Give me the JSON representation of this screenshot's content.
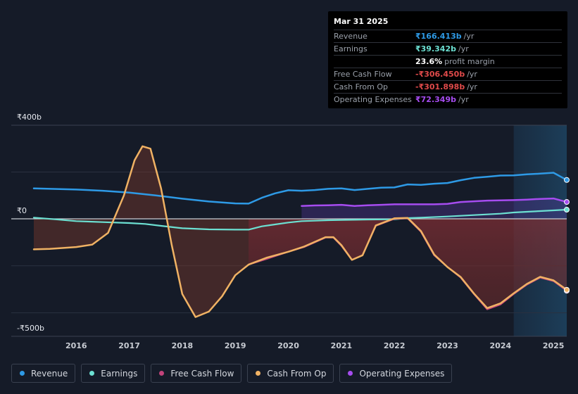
{
  "colors": {
    "revenue": "#2e9ae6",
    "earnings": "#6ce0d2",
    "fcf": "#c2437a",
    "cfo": "#f0b264",
    "opex": "#a64cf0",
    "grid": "#2a3140",
    "zero": "#c8ccd3",
    "axis_text": "#e6e9ef"
  },
  "tooltip": {
    "date": "Mar 31 2025",
    "rows": [
      {
        "label": "Revenue",
        "value": "₹166.413b",
        "unit": "/yr",
        "color": "#2e9ae6"
      },
      {
        "label": "Earnings",
        "value": "₹39.342b",
        "unit": "/yr",
        "color": "#6ce0d2"
      },
      {
        "label": "",
        "value": "23.6%",
        "unit": "profit margin",
        "color": "#ffffff"
      },
      {
        "label": "Free Cash Flow",
        "value": "-₹306.450b",
        "unit": "/yr",
        "color": "#e04a4a"
      },
      {
        "label": "Cash From Op",
        "value": "-₹301.898b",
        "unit": "/yr",
        "color": "#e04a4a"
      },
      {
        "label": "Operating Expenses",
        "value": "₹72.349b",
        "unit": "/yr",
        "color": "#a64cf0"
      }
    ]
  },
  "legend": [
    {
      "label": "Revenue",
      "color": "#2e9ae6"
    },
    {
      "label": "Earnings",
      "color": "#6ce0d2"
    },
    {
      "label": "Free Cash Flow",
      "color": "#c2437a"
    },
    {
      "label": "Cash From Op",
      "color": "#f0b264"
    },
    {
      "label": "Operating Expenses",
      "color": "#a64cf0"
    }
  ],
  "chart_data": {
    "type": "line",
    "title": "",
    "xlabel": "",
    "ylabel": "",
    "y_axis_labels": [
      "₹400b",
      "₹0",
      "-₹500b"
    ],
    "xlim": [
      2015.2,
      2025.25
    ],
    "ylim": [
      -500,
      400
    ],
    "x_ticks": [
      2016,
      2017,
      2018,
      2019,
      2020,
      2021,
      2022,
      2023,
      2024,
      2025
    ],
    "highlight_from": 2024.25,
    "series": [
      {
        "name": "Revenue",
        "key": "revenue",
        "fill": false,
        "x": [
          2015.2,
          2016.0,
          2016.5,
          2017.0,
          2017.5,
          2018.0,
          2018.5,
          2019.0,
          2019.25,
          2019.5,
          2019.75,
          2020.0,
          2020.25,
          2020.5,
          2020.75,
          2021.0,
          2021.25,
          2021.5,
          2021.75,
          2022.0,
          2022.25,
          2022.5,
          2022.75,
          2023.0,
          2023.25,
          2023.5,
          2023.75,
          2024.0,
          2024.25,
          2024.5,
          2024.75,
          2025.0,
          2025.25
        ],
        "values": [
          130,
          125,
          120,
          112,
          100,
          86,
          74,
          66,
          65,
          90,
          109,
          122,
          120,
          123,
          128,
          130,
          123,
          128,
          133,
          134,
          147,
          145,
          150,
          153,
          165,
          175,
          180,
          185,
          186,
          190,
          193,
          197,
          166
        ]
      },
      {
        "name": "Earnings",
        "key": "earnings",
        "fill": false,
        "x": [
          2015.2,
          2015.6,
          2016.0,
          2016.5,
          2017.0,
          2017.3,
          2017.6,
          2018.0,
          2018.5,
          2019.0,
          2019.25,
          2019.5,
          2019.75,
          2020.0,
          2020.25,
          2020.5,
          2020.75,
          2021.0,
          2021.5,
          2022.0,
          2022.25,
          2022.5,
          2023.0,
          2023.5,
          2024.0,
          2024.25,
          2024.5,
          2024.75,
          2025.0,
          2025.25
        ],
        "values": [
          5,
          -2,
          -10,
          -14,
          -18,
          -22,
          -30,
          -40,
          -45,
          -46,
          -46,
          -32,
          -24,
          -16,
          -10,
          -8,
          -6,
          -5,
          -3,
          -2,
          3,
          5,
          10,
          16,
          22,
          27,
          30,
          33,
          36,
          39
        ]
      },
      {
        "name": "Free Cash Flow",
        "key": "fcf",
        "fill": true,
        "x": [
          2019.25,
          2019.6,
          2020.0,
          2020.3,
          2020.7,
          2020.85,
          2021.0,
          2021.2,
          2021.4,
          2021.65,
          2022.0,
          2022.25,
          2022.5,
          2022.75,
          2023.0,
          2023.25,
          2023.5,
          2023.75,
          2024.0,
          2024.25,
          2024.5,
          2024.75,
          2025.0,
          2025.25
        ],
        "values": [
          -195,
          -170,
          -140,
          -120,
          -80,
          -80,
          -115,
          -175,
          -155,
          -30,
          0,
          2,
          -55,
          -155,
          -205,
          -250,
          -320,
          -385,
          -365,
          -320,
          -280,
          -250,
          -265,
          -306
        ]
      },
      {
        "name": "Cash From Op",
        "key": "cfo",
        "fill": true,
        "x": [
          2015.2,
          2015.5,
          2016.0,
          2016.3,
          2016.6,
          2016.9,
          2017.1,
          2017.25,
          2017.4,
          2017.6,
          2017.8,
          2018.0,
          2018.25,
          2018.5,
          2018.75,
          2019.0,
          2019.25,
          2019.6,
          2020.0,
          2020.3,
          2020.7,
          2020.85,
          2021.0,
          2021.2,
          2021.4,
          2021.65,
          2022.0,
          2022.25,
          2022.5,
          2022.75,
          2023.0,
          2023.25,
          2023.5,
          2023.75,
          2024.0,
          2024.25,
          2024.5,
          2024.75,
          2025.0,
          2025.25
        ],
        "values": [
          -130,
          -128,
          -120,
          -110,
          -60,
          100,
          250,
          310,
          300,
          130,
          -110,
          -320,
          -418,
          -395,
          -330,
          -240,
          -195,
          -165,
          -140,
          -118,
          -78,
          -78,
          -112,
          -175,
          -155,
          -28,
          2,
          4,
          -52,
          -152,
          -205,
          -248,
          -318,
          -380,
          -360,
          -317,
          -277,
          -247,
          -262,
          -302
        ]
      },
      {
        "name": "Operating Expenses",
        "key": "opex",
        "fill": true,
        "x": [
          2020.25,
          2020.5,
          2020.75,
          2021.0,
          2021.25,
          2021.5,
          2021.75,
          2022.0,
          2022.25,
          2022.5,
          2022.75,
          2023.0,
          2023.25,
          2023.5,
          2023.75,
          2024.0,
          2024.25,
          2024.5,
          2024.75,
          2025.0,
          2025.25
        ],
        "values": [
          55,
          57,
          58,
          60,
          55,
          58,
          60,
          62,
          62,
          62,
          62,
          64,
          72,
          75,
          78,
          79,
          80,
          82,
          85,
          87,
          72
        ]
      }
    ]
  }
}
